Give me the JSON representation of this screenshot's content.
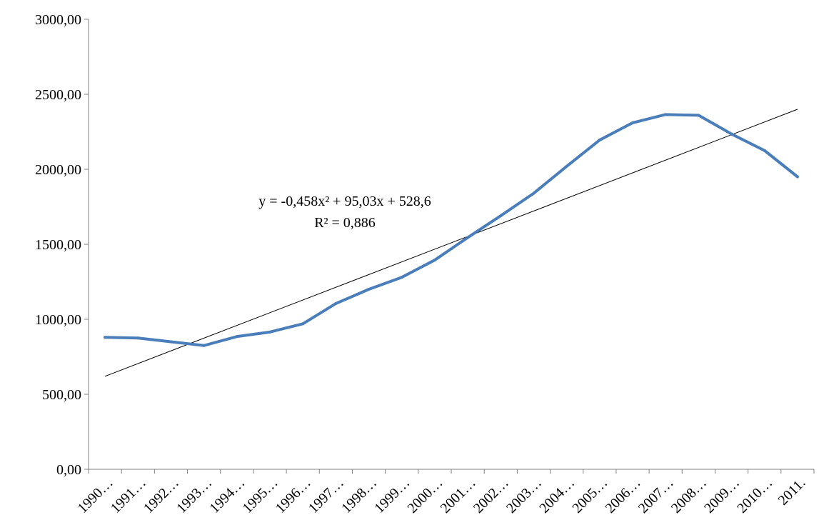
{
  "chart_data": {
    "type": "line",
    "categories": [
      "1990…",
      "1991…",
      "1992…",
      "1993…",
      "1994…",
      "1995…",
      "1996…",
      "1997…",
      "1998…",
      "1999…",
      "2000…",
      "2001…",
      "2002…",
      "2003…",
      "2004…",
      "2005…",
      "2006…",
      "2007…",
      "2008…",
      "2009…",
      "2010…",
      "2011."
    ],
    "series": [
      {
        "values": [
          880,
          875,
          850,
          825,
          885,
          915,
          970,
          1105,
          1200,
          1280,
          1395,
          1545,
          1690,
          1840,
          2020,
          2195,
          2310,
          2365,
          2360,
          2235,
          2125,
          1950
        ],
        "color": "#4a7ebb"
      }
    ],
    "trendline": {
      "start": 620,
      "end": 2400,
      "color": "#000000",
      "equation": "y = -0,458x² + 95,03x + 528,6",
      "r_squared": "R² = 0,886"
    },
    "ylim": [
      0,
      3000
    ],
    "yticks": [
      "0,00",
      "500,00",
      "1000,00",
      "1500,00",
      "2000,00",
      "2500,00",
      "3000,00"
    ],
    "ytick_values": [
      0,
      500,
      1000,
      1500,
      2000,
      2500,
      3000
    ],
    "grid": false,
    "legend": "none"
  }
}
